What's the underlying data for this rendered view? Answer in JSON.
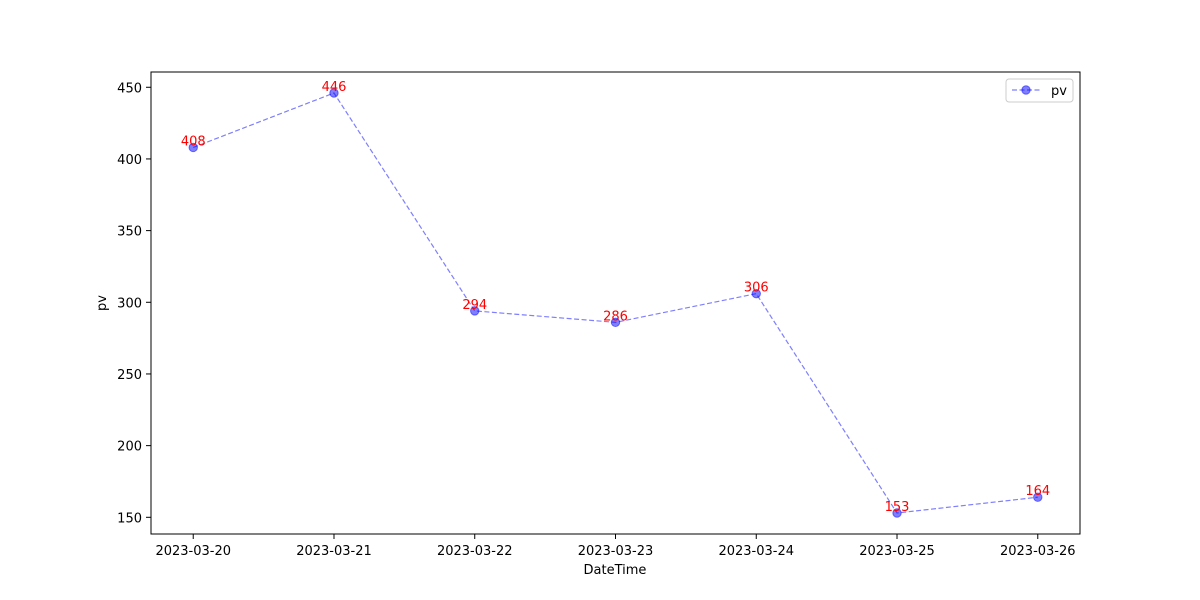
{
  "chart_data": {
    "type": "line",
    "xlabel": "DateTime",
    "ylabel": "pv",
    "categories": [
      "2023-03-20",
      "2023-03-21",
      "2023-03-22",
      "2023-03-23",
      "2023-03-24",
      "2023-03-25",
      "2023-03-26"
    ],
    "series": [
      {
        "name": "pv",
        "color": "#0000ff",
        "values": [
          408,
          446,
          294,
          286,
          306,
          153,
          164
        ]
      }
    ],
    "value_label_color": "#ff0000",
    "ylim": [
      138.35,
      460.65
    ],
    "yticks": [
      150,
      200,
      250,
      300,
      350,
      400,
      450
    ],
    "grid": false,
    "legend": "upper right"
  }
}
